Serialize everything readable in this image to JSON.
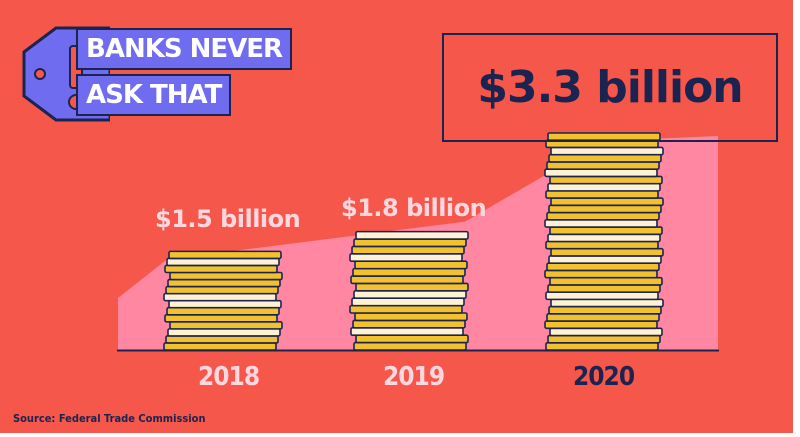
{
  "logo": {
    "line1": "BANKS NEVER",
    "line2": "ASK THAT",
    "icon": "warning-tag-icon",
    "tag_color": "#6f6cf0",
    "exclamation_color": "#f5574a"
  },
  "colors": {
    "background": "#f5574a",
    "navy": "#1b2450",
    "pink_area": "#ff8aa6",
    "coin_gold": "#f2c12e",
    "coin_light": "#fff2d2",
    "label_pink": "#ffd7df"
  },
  "chart_data": {
    "type": "bar",
    "title": "",
    "xlabel": "",
    "ylabel": "",
    "categories": [
      "2018",
      "2019",
      "2020"
    ],
    "values": [
      1.5,
      1.8,
      3.3
    ],
    "value_labels": [
      "$1.5 billion",
      "$1.8 billion",
      "$3.3 billion"
    ],
    "unit": "billion USD",
    "highlight_category": "2020",
    "ylim": [
      0,
      3.3
    ],
    "grid": false,
    "legend": "none"
  },
  "source": "Source: Federal Trade Commission"
}
